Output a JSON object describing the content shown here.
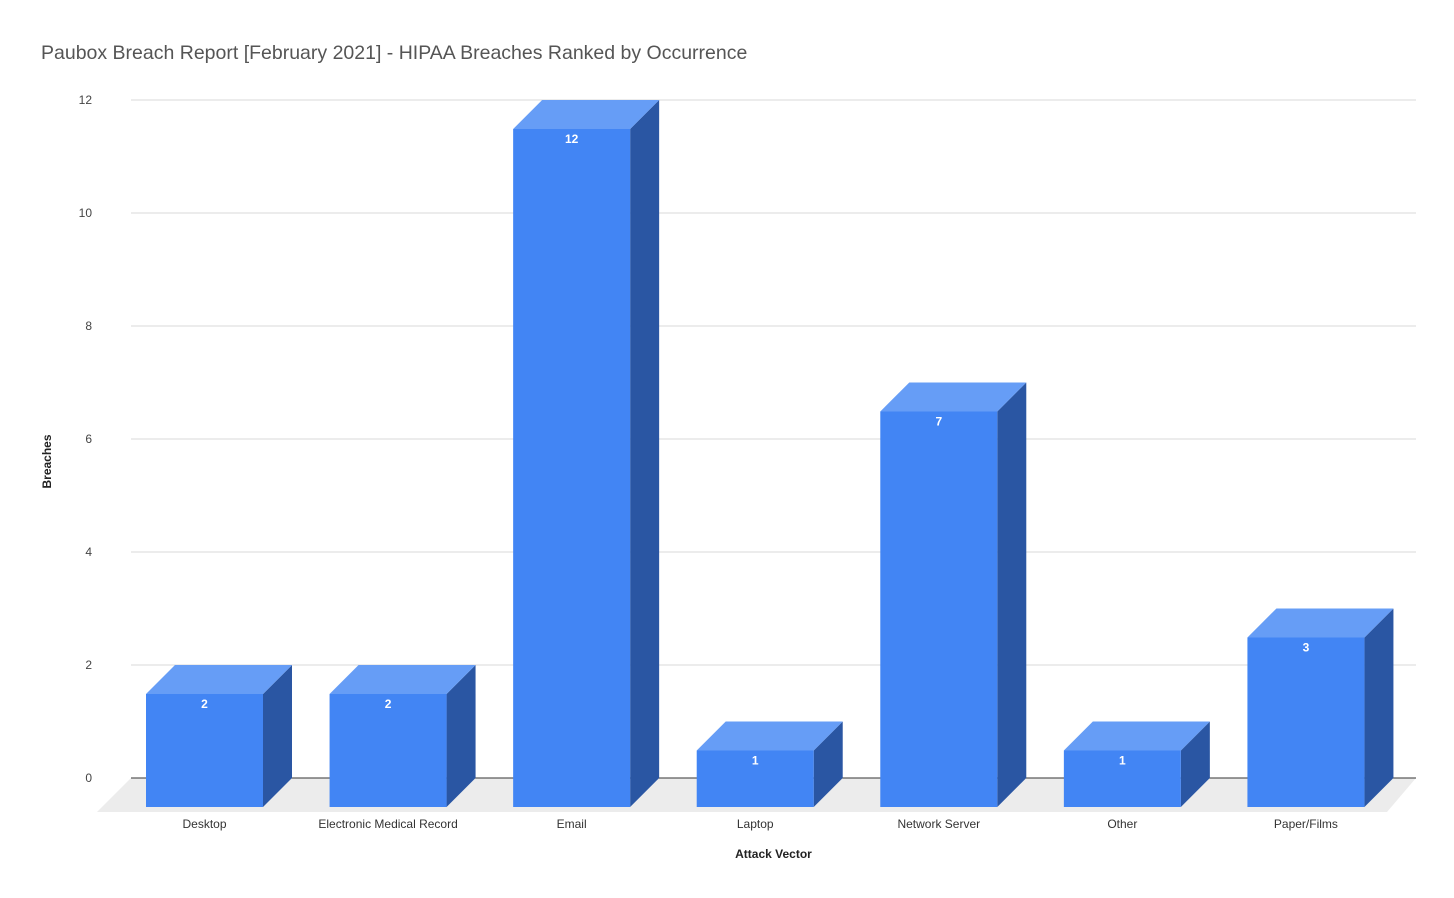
{
  "chart_data": {
    "type": "bar",
    "title": "Paubox Breach Report [February 2021] - HIPAA Breaches Ranked by Occurrence",
    "xlabel": "Attack Vector",
    "ylabel": "Breaches",
    "categories": [
      "Desktop",
      "Electronic Medical Record",
      "Email",
      "Laptop",
      "Network Server",
      "Other",
      "Paper/Films"
    ],
    "values": [
      2,
      2,
      12,
      1,
      7,
      1,
      3
    ],
    "ylim": [
      0,
      12
    ],
    "yticks": [
      0,
      2,
      4,
      6,
      8,
      10,
      12
    ],
    "grid": true,
    "legend": "none",
    "style": "3d",
    "colors": {
      "front": "#4285f4",
      "side": "#2a56a3",
      "top": "#669df6",
      "floor": "#ececec"
    }
  }
}
